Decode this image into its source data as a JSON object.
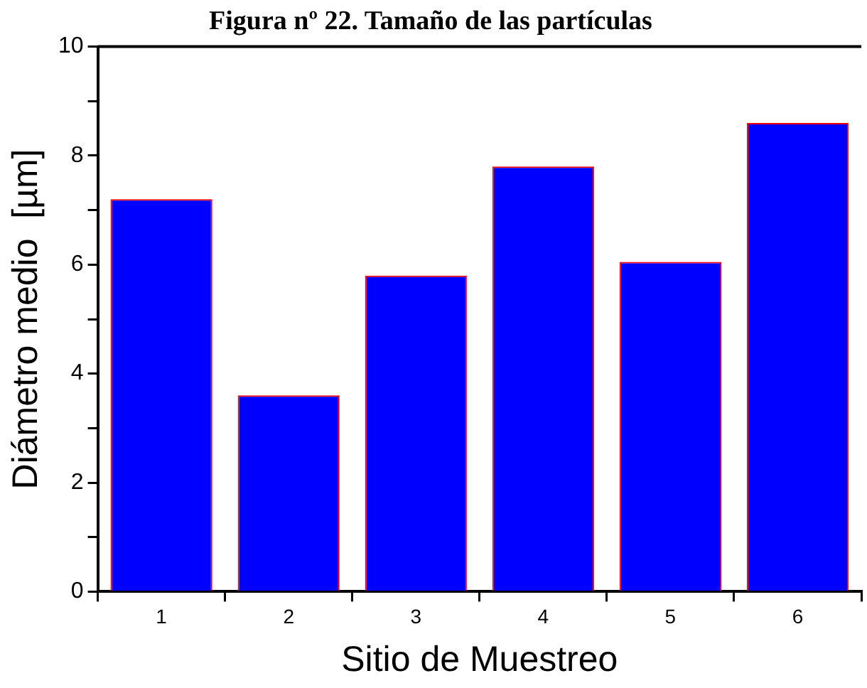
{
  "chart_data": {
    "type": "bar",
    "title": "Figura nº 22. Tamaño de las partículas",
    "xlabel": "Sitio de Muestreo",
    "ylabel": "Diámetro medio  [µm]",
    "categories": [
      "1",
      "2",
      "3",
      "4",
      "5",
      "6"
    ],
    "series": [
      {
        "color": "#0000ff",
        "values": [
          7.2,
          3.6,
          5.8,
          7.8,
          6.05,
          8.6
        ]
      }
    ],
    "ylim": [
      0,
      10
    ],
    "yticks": [
      0,
      {
        "value": 1,
        "label": null
      },
      2,
      {
        "value": 3,
        "label": null
      },
      4,
      {
        "value": 5,
        "label": null
      },
      6,
      {
        "value": 7,
        "label": null
      },
      8,
      {
        "value": 9,
        "label": null
      },
      10
    ],
    "grid": false,
    "legend": false
  }
}
